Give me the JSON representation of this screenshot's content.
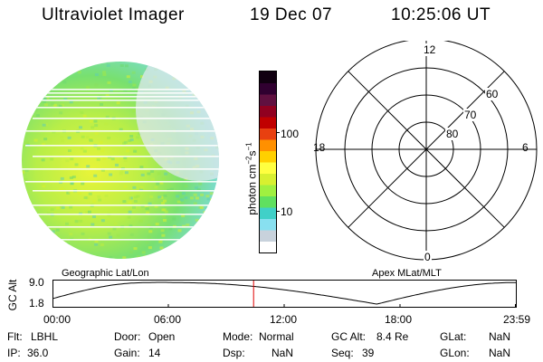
{
  "header": {
    "title": "Ultraviolet Imager",
    "date": "19 Dec 07",
    "time": "10:25:06 UT"
  },
  "colorbar": {
    "unit_text": "photon cm",
    "unit_sup1": "−2",
    "unit_mid": "s",
    "unit_sup2": "−1",
    "ticks": [
      "100",
      "10"
    ],
    "colors": [
      "#ffffff",
      "#c8d2dc",
      "#88e0f0",
      "#40d0c8",
      "#60e060",
      "#a0f040",
      "#d8f030",
      "#ffff40",
      "#ffd000",
      "#ff9000",
      "#e84010",
      "#c00000",
      "#900020",
      "#601040",
      "#300030",
      "#100010"
    ],
    "scale": "log"
  },
  "polar": {
    "top_label": "12",
    "bottom_label": "0",
    "left_label": "18",
    "right_label": "6",
    "ring_labels": [
      "60",
      "70",
      "80"
    ]
  },
  "captions": {
    "left": "Geographic Lat/Lon",
    "right": "Apex MLat/MLT"
  },
  "altitude_strip": {
    "axis_label": "GC Alt",
    "y_ticks": [
      "9.0",
      "1.8"
    ],
    "x_ticks": [
      "00:00",
      "06:00",
      "12:00",
      "18:00",
      "23:59"
    ],
    "current_time_fraction": 0.434
  },
  "status": {
    "row1": [
      {
        "label": "Flt:",
        "value": "LBHL"
      },
      {
        "label": "Door:",
        "value": "Open"
      },
      {
        "label": "Mode:",
        "value": "Normal"
      },
      {
        "label": "GC Alt:",
        "value": "8.4 Re"
      },
      {
        "label": "GLat:",
        "value": "NaN"
      }
    ],
    "row2": [
      {
        "label": "IP:",
        "value": "36.0"
      },
      {
        "label": "Gain:",
        "value": "14"
      },
      {
        "label": "Dsp:",
        "value": "NaN"
      },
      {
        "label": "Seq:",
        "value": "39"
      },
      {
        "label": "GLon:",
        "value": "NaN"
      }
    ]
  }
}
